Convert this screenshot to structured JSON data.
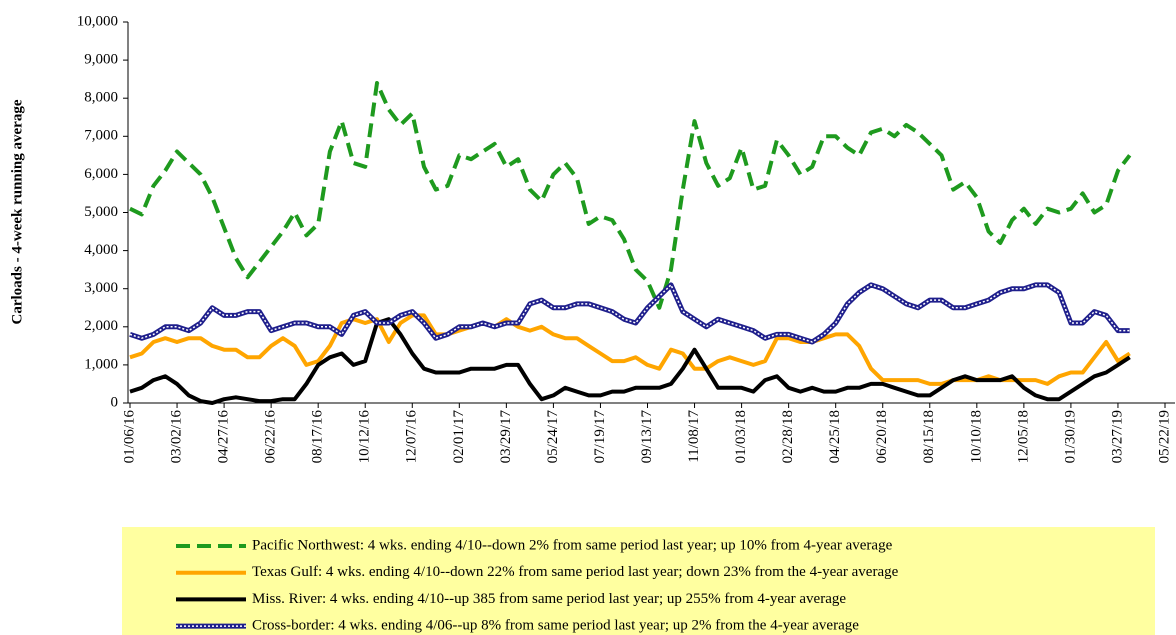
{
  "chart_data": {
    "type": "line",
    "y_label": "Carloads - 4-week running average",
    "categories": [
      "01/06/16",
      null,
      null,
      null,
      "03/02/16",
      null,
      null,
      null,
      "04/27/16",
      null,
      null,
      null,
      "06/22/16",
      null,
      null,
      null,
      "08/17/16",
      null,
      null,
      null,
      "10/12/16",
      null,
      null,
      null,
      "12/07/16",
      null,
      null,
      null,
      "02/01/17",
      null,
      null,
      null,
      "03/29/17",
      null,
      null,
      null,
      "05/24/17",
      null,
      null,
      null,
      "07/19/17",
      null,
      null,
      null,
      "09/13/17",
      null,
      null,
      null,
      "11/08/17",
      null,
      null,
      null,
      "01/03/18",
      null,
      null,
      null,
      "02/28/18",
      null,
      null,
      null,
      "04/25/18",
      null,
      null,
      null,
      "06/20/18",
      null,
      null,
      null,
      "08/15/18",
      null,
      null,
      null,
      "10/10/18",
      null,
      null,
      null,
      "12/05/18",
      null,
      null,
      null,
      "01/30/19",
      null,
      null,
      null,
      "03/27/19",
      null,
      null,
      null,
      "05/22/19"
    ],
    "ylim": [
      0,
      10000
    ],
    "yticks": [
      0,
      {
        "value": 1000,
        "label": "1,000"
      },
      {
        "value": 2000,
        "label": "2,000"
      },
      {
        "value": 3000,
        "label": "3,000"
      },
      {
        "value": 4000,
        "label": "4,000"
      },
      {
        "value": 5000,
        "label": "5,000"
      },
      {
        "value": 6000,
        "label": "6,000"
      },
      {
        "value": 7000,
        "label": "7,000"
      },
      {
        "value": 8000,
        "label": "8,000"
      },
      {
        "value": 9000,
        "label": "9,000"
      },
      {
        "value": 10000,
        "label": "10,000"
      }
    ],
    "grid": false,
    "series": [
      {
        "name": "Pacific Northwest:  4 wks. ending 4/10--down 2% from same period last year; up 10% from 4-year average",
        "color": "#1e9a1e",
        "line_style": "dashed",
        "values": [
          5100,
          4950,
          5700,
          6100,
          6600,
          6300,
          6000,
          5400,
          4600,
          3800,
          3300,
          3700,
          4100,
          4500,
          5000,
          4400,
          4700,
          6600,
          7400,
          6300,
          6200,
          8400,
          7700,
          7300,
          7600,
          6200,
          5600,
          5700,
          6500,
          6400,
          6600,
          6800,
          6200,
          6400,
          5600,
          5300,
          6000,
          6300,
          5900,
          4700,
          4900,
          4800,
          4300,
          3500,
          3200,
          2500,
          3500,
          5600,
          7400,
          6300,
          5700,
          5900,
          6700,
          5600,
          5700,
          6900,
          6500,
          6000,
          6200,
          7000,
          7000,
          6700,
          6500,
          7100,
          7200,
          7000,
          7300,
          7100,
          6800,
          6500,
          5600,
          5800,
          5400,
          4500,
          4200,
          4800,
          5100,
          4700,
          5100,
          5000,
          5100,
          5500,
          5000,
          5200,
          6100,
          6500,
          null,
          null,
          null
        ]
      },
      {
        "name": "Texas Gulf:  4 wks. ending 4/10--down 22% from same period last year; down 23% from the 4-year average",
        "color": "#ffa500",
        "line_style": "solid",
        "values": [
          1200,
          1300,
          1600,
          1700,
          1600,
          1700,
          1700,
          1500,
          1400,
          1400,
          1200,
          1200,
          1500,
          1700,
          1500,
          1000,
          1100,
          1500,
          2100,
          2200,
          2100,
          2200,
          1600,
          2100,
          2300,
          2300,
          1800,
          1800,
          1900,
          2000,
          2100,
          2000,
          2200,
          2000,
          1900,
          2000,
          1800,
          1700,
          1700,
          1500,
          1300,
          1100,
          1100,
          1200,
          1000,
          900,
          1400,
          1300,
          900,
          900,
          1100,
          1200,
          1100,
          1000,
          1100,
          1700,
          1700,
          1600,
          1600,
          1700,
          1800,
          1800,
          1500,
          900,
          600,
          600,
          600,
          600,
          500,
          500,
          600,
          600,
          600,
          700,
          600,
          600,
          600,
          600,
          500,
          700,
          800,
          800,
          1200,
          1600,
          1100,
          1300,
          null,
          null,
          null
        ]
      },
      {
        "name": "Miss. River:  4 wks. ending 4/10--up 385 from same period last year; up 255% from 4-year average",
        "color": "#000000",
        "line_style": "solid",
        "values": [
          300,
          400,
          600,
          700,
          500,
          200,
          50,
          0,
          100,
          150,
          100,
          50,
          50,
          100,
          100,
          500,
          1000,
          1200,
          1300,
          1000,
          1100,
          2100,
          2200,
          1800,
          1300,
          900,
          800,
          800,
          800,
          900,
          900,
          900,
          1000,
          1000,
          500,
          100,
          200,
          400,
          300,
          200,
          200,
          300,
          300,
          400,
          400,
          400,
          500,
          900,
          1400,
          900,
          400,
          400,
          400,
          300,
          600,
          700,
          400,
          300,
          400,
          300,
          300,
          400,
          400,
          500,
          500,
          400,
          300,
          200,
          200,
          400,
          600,
          700,
          600,
          600,
          600,
          700,
          400,
          200,
          100,
          100,
          300,
          500,
          700,
          800,
          1000,
          1200,
          null,
          null,
          null
        ]
      },
      {
        "name": "Cross-border:  4 wks. ending 4/06--up 8% from same period last year; up 2% from the 4-year average",
        "color": "#1f1f8c",
        "line_style": "dotted-double",
        "values": [
          1800,
          1700,
          1800,
          2000,
          2000,
          1900,
          2100,
          2500,
          2300,
          2300,
          2400,
          2400,
          1900,
          2000,
          2100,
          2100,
          2000,
          2000,
          1800,
          2300,
          2400,
          2100,
          2100,
          2300,
          2400,
          2100,
          1700,
          1800,
          2000,
          2000,
          2100,
          2000,
          2100,
          2100,
          2600,
          2700,
          2500,
          2500,
          2600,
          2600,
          2500,
          2400,
          2200,
          2100,
          2500,
          2800,
          3100,
          2400,
          2200,
          2000,
          2200,
          2100,
          2000,
          1900,
          1700,
          1800,
          1800,
          1700,
          1600,
          1800,
          2100,
          2600,
          2900,
          3100,
          3000,
          2800,
          2600,
          2500,
          2700,
          2700,
          2500,
          2500,
          2600,
          2700,
          2900,
          3000,
          3000,
          3100,
          3100,
          2900,
          2100,
          2100,
          2400,
          2300,
          1900,
          1900,
          null,
          null,
          null
        ]
      }
    ]
  }
}
